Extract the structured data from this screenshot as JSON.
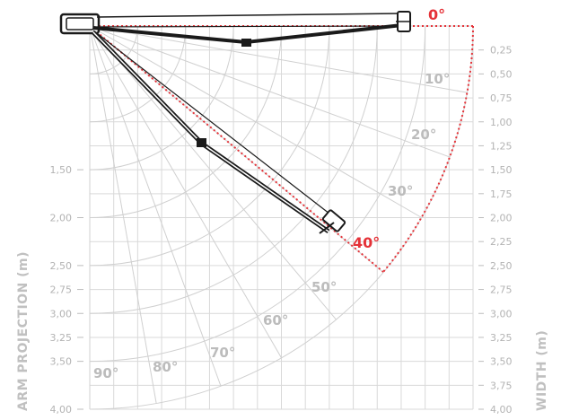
{
  "diagram": {
    "left_axis_title": "ARM PROJECTION (m)",
    "right_axis_title": "WIDTH (m)",
    "left_ticks": [
      "1,50",
      "2,00",
      "2,50",
      "2,75",
      "3,00",
      "3,25",
      "3,50",
      "4,00"
    ],
    "right_ticks": [
      "0,25",
      "0,50",
      "0,75",
      "1,00",
      "1,25",
      "1,50",
      "1,75",
      "2,00",
      "2,25",
      "2,50",
      "2,75",
      "3,00",
      "3,25",
      "3,50",
      "3,75",
      "4,00"
    ],
    "angle_labels_gray": [
      "10°",
      "20°",
      "30°",
      "50°",
      "60°",
      "70°",
      "80°",
      "90°"
    ],
    "angle_labels_red": [
      "0°",
      "40°"
    ],
    "colors": {
      "accent_red": "#e53238",
      "gray_text": "#b3b3b3",
      "grid": "#d9d9d9",
      "frame": "#1a1a1a"
    }
  }
}
